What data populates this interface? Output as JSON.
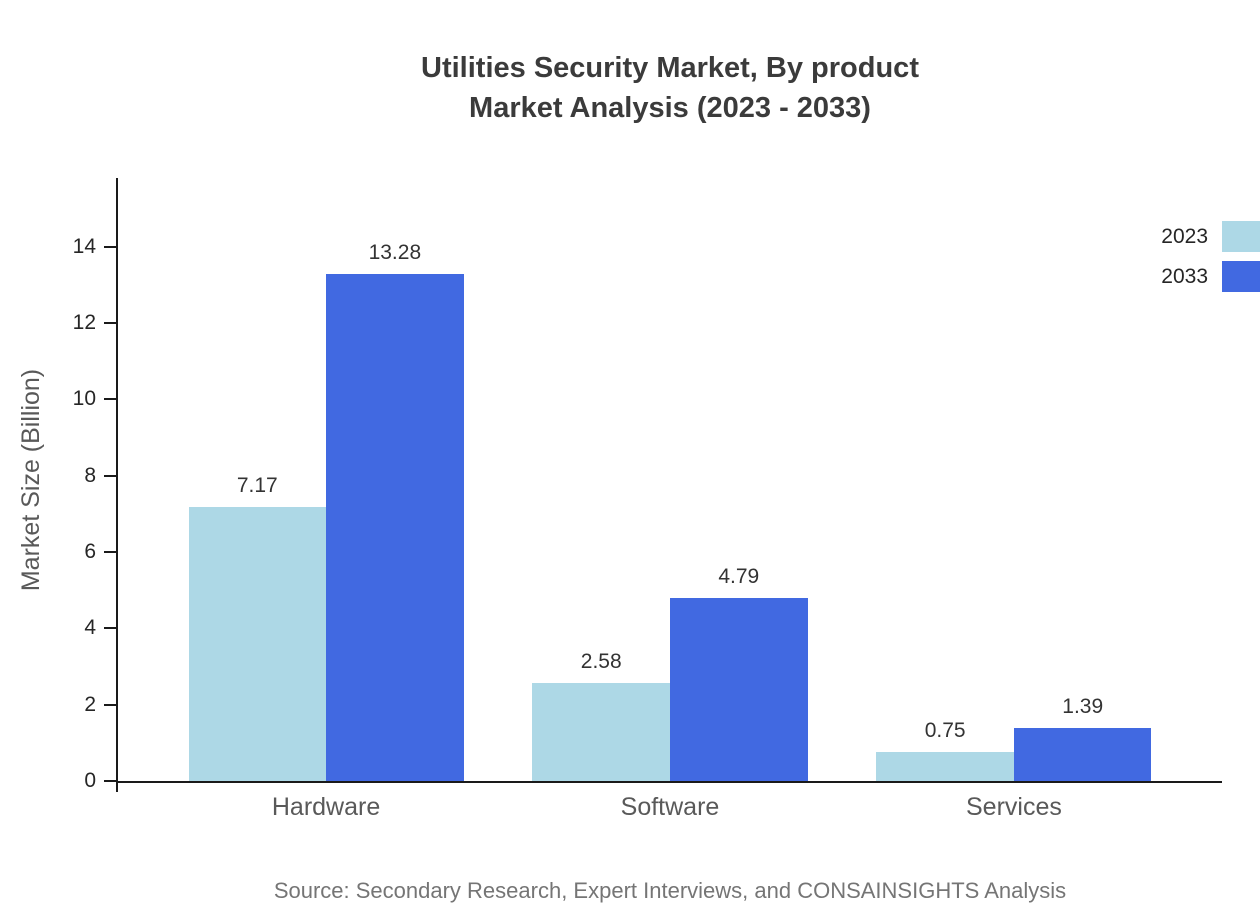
{
  "source_text": "Source: Secondary Research, Expert Interviews, and CONSAINSIGHTS Analysis",
  "chart_data": {
    "type": "bar",
    "title": "Utilities Security Market, By product Market Analysis (2023 - 2033)",
    "title_lines": [
      "Utilities Security Market, By product",
      "Market Analysis (2023 - 2033)"
    ],
    "categories": [
      "Hardware",
      "Software",
      "Services"
    ],
    "series": [
      {
        "name": "2023",
        "color": "#add8e6",
        "values": [
          7.17,
          2.58,
          0.75
        ]
      },
      {
        "name": "2033",
        "color": "#4169e1",
        "values": [
          13.28,
          4.79,
          1.39
        ]
      }
    ],
    "xlabel": "",
    "ylabel": "Market Size (Billion)",
    "yticks": [
      0,
      2,
      4,
      6,
      8,
      10,
      12,
      14
    ],
    "ylim": [
      0,
      15.8
    ],
    "grid": false,
    "legend_position": "top-right",
    "value_labels": true,
    "axis_color": "#1a1a1a"
  }
}
